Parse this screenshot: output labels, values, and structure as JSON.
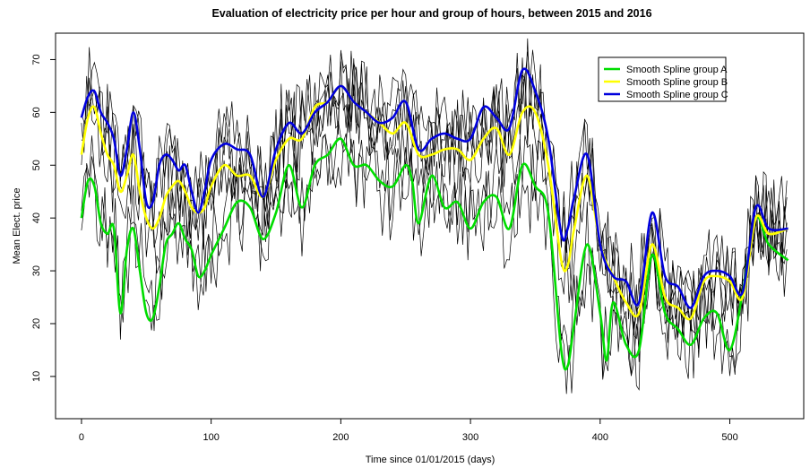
{
  "chart_data": {
    "type": "line",
    "title": "Evaluation of electricity price per hour and group of hours, between 2015 and 2016",
    "xlabel": "Time since 01/01/2015 (days)",
    "ylabel": "Mean Elect. price",
    "xlim": [
      -20,
      557
    ],
    "ylim": [
      2,
      75
    ],
    "xticks": [
      0,
      100,
      200,
      300,
      400,
      500
    ],
    "yticks": [
      10,
      20,
      30,
      40,
      50,
      60,
      70
    ],
    "legend_position": "top-right",
    "grid": false,
    "series": [
      {
        "name": "Smooth Spline group A",
        "color": "#00dd00",
        "x": [
          0,
          5,
          10,
          15,
          20,
          25,
          30,
          35,
          40,
          45,
          50,
          55,
          60,
          65,
          70,
          75,
          80,
          85,
          90,
          95,
          100,
          110,
          120,
          130,
          140,
          150,
          160,
          170,
          180,
          190,
          200,
          210,
          220,
          230,
          240,
          250,
          255,
          260,
          270,
          280,
          290,
          300,
          310,
          320,
          330,
          340,
          350,
          360,
          370,
          375,
          380,
          390,
          400,
          405,
          410,
          420,
          430,
          440,
          450,
          460,
          470,
          480,
          490,
          500,
          510,
          520,
          530,
          545
        ],
        "y": [
          40,
          47,
          46,
          39,
          37,
          38,
          22,
          34,
          38,
          30,
          22,
          21,
          27,
          35,
          37,
          39,
          36,
          34,
          29,
          30,
          33,
          38,
          43,
          42,
          36,
          41,
          50,
          42,
          50,
          52,
          55,
          50,
          50,
          47,
          46,
          50,
          47,
          39,
          48,
          42,
          43,
          38,
          43,
          44,
          38,
          50,
          46,
          41,
          15,
          12,
          20,
          35,
          22,
          13,
          24,
          16,
          15,
          33,
          22,
          19,
          16,
          21,
          22,
          15,
          26,
          40,
          35,
          32
        ]
      },
      {
        "name": "Smooth Spline group B",
        "color": "#ffff00",
        "x": [
          0,
          5,
          10,
          15,
          20,
          25,
          30,
          35,
          40,
          45,
          50,
          55,
          60,
          65,
          70,
          75,
          80,
          85,
          90,
          95,
          100,
          110,
          120,
          130,
          140,
          150,
          160,
          170,
          180,
          190,
          200,
          210,
          220,
          230,
          240,
          250,
          260,
          270,
          280,
          290,
          300,
          310,
          320,
          330,
          340,
          350,
          360,
          370,
          375,
          380,
          390,
          400,
          410,
          420,
          430,
          440,
          450,
          460,
          470,
          480,
          490,
          500,
          510,
          520,
          530,
          545
        ],
        "y": [
          52,
          59,
          61,
          56,
          52,
          50,
          45,
          48,
          52,
          45,
          40,
          38,
          40,
          44,
          46,
          47,
          45,
          42,
          41,
          42,
          46,
          50,
          48,
          48,
          44,
          51,
          55,
          55,
          61,
          62,
          65,
          62,
          60,
          58,
          56,
          58,
          52,
          52,
          53,
          53,
          51,
          55,
          57,
          52,
          60,
          60,
          50,
          32,
          31,
          38,
          48,
          35,
          29,
          24,
          22,
          35,
          25,
          23,
          21,
          28,
          29,
          28,
          25,
          40,
          37,
          38
        ]
      },
      {
        "name": "Smooth Spline group C",
        "color": "#0000dd",
        "x": [
          0,
          5,
          10,
          15,
          20,
          25,
          30,
          35,
          40,
          45,
          50,
          55,
          60,
          65,
          70,
          75,
          80,
          85,
          90,
          95,
          100,
          110,
          120,
          130,
          140,
          150,
          160,
          170,
          180,
          190,
          200,
          210,
          220,
          230,
          240,
          250,
          260,
          270,
          280,
          290,
          300,
          310,
          320,
          330,
          340,
          350,
          360,
          370,
          375,
          380,
          390,
          400,
          410,
          420,
          430,
          440,
          450,
          460,
          470,
          480,
          490,
          500,
          510,
          520,
          530,
          545
        ],
        "y": [
          59,
          63,
          64,
          60,
          58,
          55,
          48,
          53,
          60,
          53,
          43,
          43,
          50,
          52,
          51,
          49,
          50,
          45,
          41,
          45,
          51,
          54,
          53,
          52,
          44,
          53,
          58,
          56,
          60,
          62,
          65,
          62,
          60,
          58,
          59,
          62,
          53,
          55,
          56,
          55,
          55,
          61,
          59,
          57,
          68,
          64,
          55,
          37,
          38,
          44,
          52,
          35,
          29,
          28,
          24,
          41,
          29,
          27,
          23,
          29,
          30,
          29,
          26,
          42,
          38,
          38
        ]
      }
    ]
  }
}
